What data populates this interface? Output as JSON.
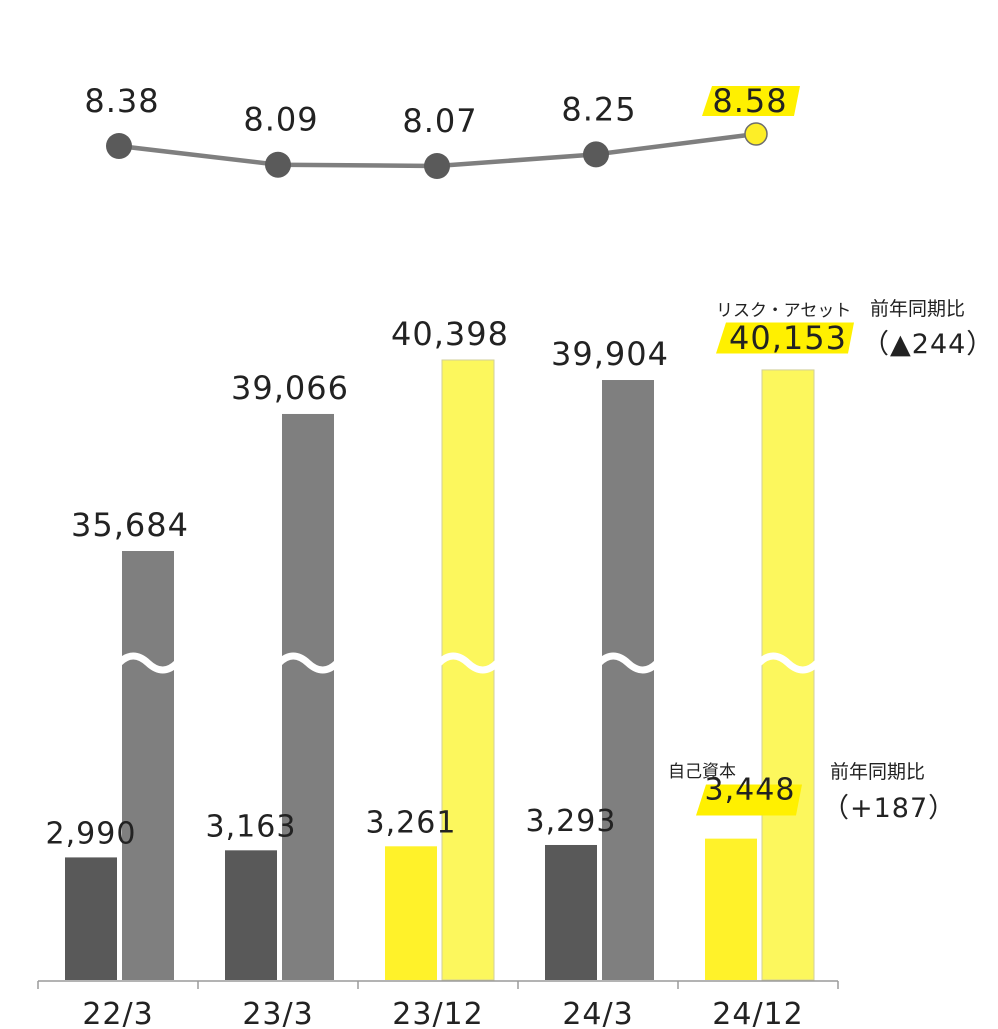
{
  "chart_data": {
    "type": "bar",
    "categories": [
      "22/3",
      "23/3",
      "23/12",
      "24/3",
      "24/12"
    ],
    "ratio_line": [
      8.38,
      8.09,
      8.07,
      8.25,
      8.58
    ],
    "series": [
      {
        "name": "自己資本",
        "values": [
          2990,
          3163,
          3261,
          3293,
          3448
        ],
        "labels": [
          "2,990",
          "3,163",
          "3,261",
          "3,293",
          "3,448"
        ]
      },
      {
        "name": "リスク・アセット",
        "values": [
          35684,
          39066,
          40398,
          39904,
          40153
        ],
        "labels": [
          "35,684",
          "39,066",
          "40,398",
          "39,904",
          "40,153"
        ]
      }
    ],
    "ratio_labels": [
      "8.38",
      "8.09",
      "8.07",
      "8.25",
      "8.58"
    ],
    "highlight_categories": [
      "23/12",
      "24/12"
    ],
    "axis_break": true,
    "colors": {
      "capital": "#595959",
      "capital_highlight": "#fff22a",
      "risk_asset": "#7f7f7f",
      "risk_asset_highlight": "#fcf75d",
      "line": "#7f7f7f",
      "marker": "#5a5a5a",
      "marker_highlight": "#fdee27",
      "label_highlight": "#fff000"
    }
  },
  "annotations": {
    "risk_asset_title": "リスク・アセット",
    "risk_asset_yoy_label": "前年同期比",
    "risk_asset_yoy_value": "（▲244）",
    "capital_title": "自己資本",
    "capital_yoy_label": "前年同期比",
    "capital_yoy_value": "（+187）"
  }
}
